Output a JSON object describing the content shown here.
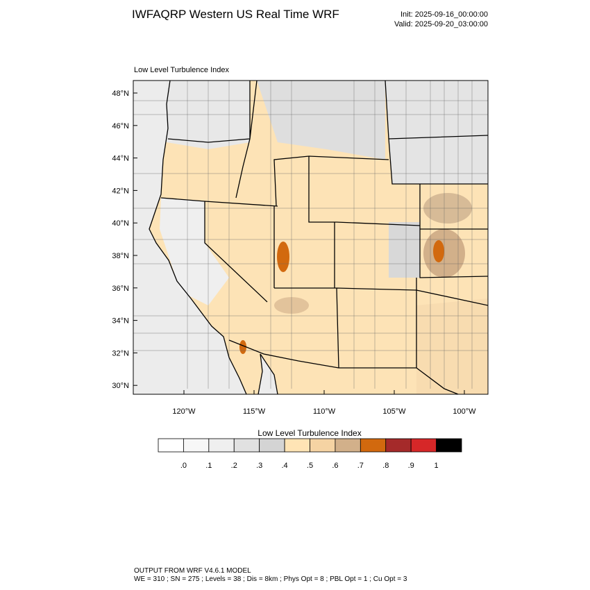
{
  "header": {
    "title": "IWFAQRP Western US Real Time WRF",
    "init": "Init: 2025-09-16_00:00:00",
    "valid": "Valid: 2025-09-20_03:00:00"
  },
  "map": {
    "title": "Low Level Turbulence Index",
    "lat_labels": [
      "48°N",
      "46°N",
      "44°N",
      "42°N",
      "40°N",
      "38°N",
      "36°N",
      "34°N",
      "32°N",
      "30°N"
    ],
    "lon_labels": [
      "120°W",
      "115°W",
      "110°W",
      "105°W",
      "100°W"
    ]
  },
  "colorbar": {
    "title": "Low Level Turbulence Index",
    "colors": [
      "#ffffff",
      "#f7f7f7",
      "#efefef",
      "#e1e1e1",
      "#d4d4d4",
      "#ffe4b5",
      "#f5d3a3",
      "#d2b08a",
      "#d2690e",
      "#a52a2a",
      "#d62728",
      "#000000"
    ],
    "labels": [
      ".0",
      ".1",
      ".2",
      ".3",
      ".4",
      ".5",
      ".6",
      ".7",
      ".8",
      ".9",
      "1"
    ]
  },
  "footer": {
    "model": "OUTPUT FROM WRF V4.6.1 MODEL",
    "settings": "WE = 310 ; SN = 275 ; Levels = 38 ; Dis = 8km ; Phys Opt = 8 ; PBL Opt = 1 ; Cu Opt = 3"
  }
}
